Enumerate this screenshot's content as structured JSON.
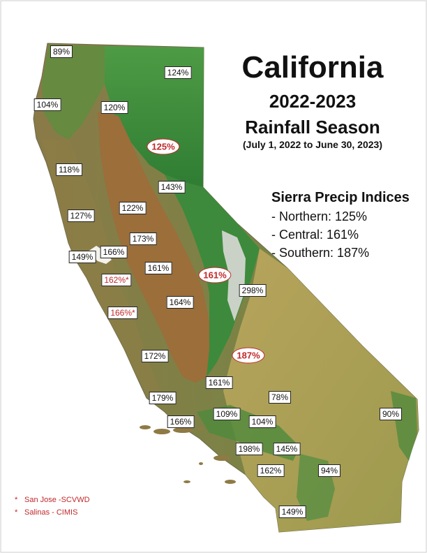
{
  "title": {
    "main": "California",
    "years": "2022-2023",
    "season": "Rainfall Season",
    "dates": "(July 1, 2022 to June 30, 2023)"
  },
  "sierra_indices": {
    "heading": "Sierra Precip Indices",
    "lines": [
      "- Northern: 125%",
      "- Central: 161%",
      "- Southern: 187%"
    ]
  },
  "station_labels": [
    "89%",
    "124%",
    "104%",
    "120%",
    "118%",
    "143%",
    "127%",
    "122%",
    "149%",
    "166%",
    "173%",
    "161%",
    "298%",
    "164%",
    "172%",
    "161%",
    "179%",
    "78%",
    "166%",
    "109%",
    "104%",
    "90%",
    "198%",
    "145%",
    "162%",
    "94%",
    "149%"
  ],
  "red_station_labels": [
    "162%*",
    "166%*"
  ],
  "sierra_oval_labels": [
    "125%",
    "161%",
    "187%"
  ],
  "footnotes": [
    {
      "marker": "*",
      "text": "San Jose -SCVWD"
    },
    {
      "marker": "*",
      "text": "Salinas - CIMIS"
    }
  ],
  "colors": {
    "valley_brown": "#9b6e3a",
    "forest_green": "#3e8f3a",
    "foothill_tan": "#b3a35e",
    "mountain_white": "#dddddd",
    "ocean_white": "#ffffff",
    "index_red": "#c0282a"
  }
}
